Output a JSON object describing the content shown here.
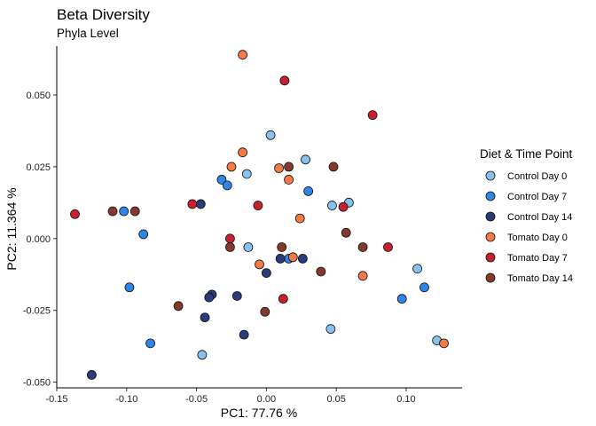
{
  "chart_data": {
    "type": "scatter",
    "title": "Beta Diversity",
    "subtitle": "Phyla Level",
    "xlabel": "PC1:  77.76 %",
    "ylabel": "PC2:  11.364 %",
    "xlim": [
      -0.15,
      0.14
    ],
    "ylim": [
      -0.052,
      0.067
    ],
    "x_ticks": [
      -0.15,
      -0.1,
      -0.05,
      0.0,
      0.05,
      0.1
    ],
    "x_tick_labels": [
      "-0.15",
      "-0.10",
      "-0.05",
      "0.00",
      "0.05",
      "0.10"
    ],
    "y_ticks": [
      -0.05,
      -0.025,
      0.0,
      0.025,
      0.05
    ],
    "y_tick_labels": [
      "-0.050",
      "-0.025",
      "0.000",
      "0.025",
      "0.050"
    ],
    "grid": false,
    "legend": {
      "title": "Diet & Time Point",
      "position": "right"
    },
    "series": [
      {
        "name": "Control Day 0",
        "color": "#87c2ee",
        "points": [
          [
            0.003,
            0.036
          ],
          [
            0.028,
            0.0275
          ],
          [
            -0.014,
            0.0225
          ],
          [
            0.047,
            0.0115
          ],
          [
            0.059,
            0.0125
          ],
          [
            -0.013,
            -0.003
          ],
          [
            0.108,
            -0.0105
          ],
          [
            0.046,
            -0.0315
          ],
          [
            -0.046,
            -0.0405
          ],
          [
            0.122,
            -0.0355
          ]
        ]
      },
      {
        "name": "Control Day 7",
        "color": "#2f86e6",
        "points": [
          [
            -0.032,
            0.0205
          ],
          [
            -0.028,
            0.0185
          ],
          [
            0.03,
            0.0165
          ],
          [
            -0.102,
            0.0095
          ],
          [
            -0.088,
            0.0015
          ],
          [
            0.016,
            -0.007
          ],
          [
            -0.098,
            -0.017
          ],
          [
            0.113,
            -0.017
          ],
          [
            0.097,
            -0.021
          ],
          [
            -0.083,
            -0.0365
          ]
        ]
      },
      {
        "name": "Control Day 14",
        "color": "#2a3a7a",
        "points": [
          [
            -0.047,
            0.012
          ],
          [
            0.01,
            -0.007
          ],
          [
            0.026,
            -0.007
          ],
          [
            0.0,
            -0.012
          ],
          [
            -0.039,
            -0.0195
          ],
          [
            -0.041,
            -0.0205
          ],
          [
            -0.021,
            -0.02
          ],
          [
            -0.044,
            -0.0275
          ],
          [
            -0.016,
            -0.0335
          ],
          [
            -0.125,
            -0.0475
          ]
        ]
      },
      {
        "name": "Tomato Day 0",
        "color": "#f47a46",
        "points": [
          [
            -0.017,
            0.064
          ],
          [
            -0.017,
            0.03
          ],
          [
            -0.025,
            0.025
          ],
          [
            0.009,
            0.0245
          ],
          [
            0.016,
            0.0205
          ],
          [
            0.024,
            0.007
          ],
          [
            -0.005,
            -0.009
          ],
          [
            0.019,
            -0.0065
          ],
          [
            0.069,
            -0.013
          ],
          [
            0.127,
            -0.0365
          ]
        ]
      },
      {
        "name": "Tomato Day 7",
        "color": "#c9202f",
        "points": [
          [
            0.013,
            0.055
          ],
          [
            0.076,
            0.043
          ],
          [
            -0.053,
            0.012
          ],
          [
            -0.006,
            0.0115
          ],
          [
            0.055,
            0.011
          ],
          [
            -0.026,
            0.0
          ],
          [
            0.087,
            -0.003
          ],
          [
            0.012,
            -0.021
          ],
          [
            -0.137,
            0.0085
          ]
        ]
      },
      {
        "name": "Tomato Day 14",
        "color": "#84392f",
        "points": [
          [
            0.016,
            0.025
          ],
          [
            0.048,
            0.025
          ],
          [
            -0.11,
            0.0095
          ],
          [
            -0.094,
            0.0095
          ],
          [
            0.057,
            0.002
          ],
          [
            -0.026,
            -0.003
          ],
          [
            0.011,
            -0.003
          ],
          [
            0.069,
            -0.003
          ],
          [
            0.039,
            -0.0115
          ],
          [
            -0.063,
            -0.0235
          ],
          [
            -0.001,
            -0.0255
          ]
        ]
      }
    ]
  }
}
